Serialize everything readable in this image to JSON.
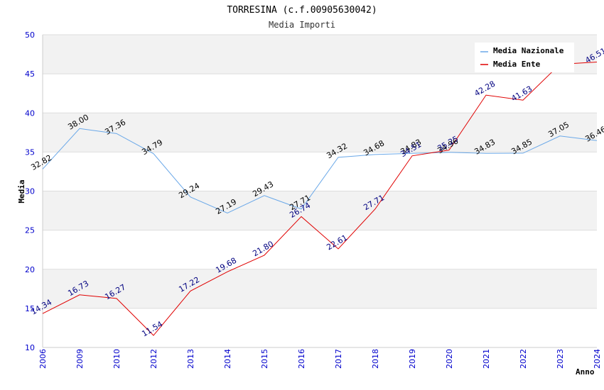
{
  "chart_data": {
    "type": "line",
    "title": "TORRESINA (c.f.00905630042)",
    "subtitle": "Media Importi",
    "xlabel": "Anno",
    "ylabel": "Media",
    "ylim": [
      10,
      50
    ],
    "yticks": [
      10,
      15,
      20,
      25,
      30,
      35,
      40,
      45,
      50
    ],
    "categories": [
      "2006",
      "2009",
      "2010",
      "2012",
      "2013",
      "2014",
      "2015",
      "2016",
      "2017",
      "2018",
      "2019",
      "2020",
      "2021",
      "2022",
      "2023",
      "2024"
    ],
    "legend_position": "top-right",
    "grid": true,
    "series": [
      {
        "name": "Media Nazionale",
        "color": "#6aa8e8",
        "values": [
          32.82,
          38.0,
          37.36,
          34.79,
          29.24,
          27.19,
          29.43,
          27.71,
          34.32,
          34.68,
          34.83,
          34.96,
          34.83,
          34.85,
          37.05,
          36.46
        ],
        "labels": [
          "32.82",
          "38.00",
          "37.36",
          "34.79",
          "29.24",
          "27.19",
          "29.43",
          "27.71",
          "34.32",
          "34.68",
          "34.83",
          "34.96",
          "34.83",
          "34.85",
          "37.05",
          "36.46"
        ]
      },
      {
        "name": "Media Ente",
        "color": "#e00000",
        "values": [
          14.34,
          16.73,
          16.27,
          11.54,
          17.22,
          19.68,
          21.8,
          26.74,
          22.61,
          27.71,
          34.51,
          35.25,
          42.28,
          41.63,
          46.23,
          46.51
        ],
        "labels": [
          "14.34",
          "16.73",
          "16.27",
          "11.54",
          "17.22",
          "19.68",
          "21.80",
          "26.74",
          "22.61",
          "27.71",
          "34.51",
          "35.25",
          "42.28",
          "41.63",
          "",
          "46.51"
        ]
      }
    ]
  }
}
